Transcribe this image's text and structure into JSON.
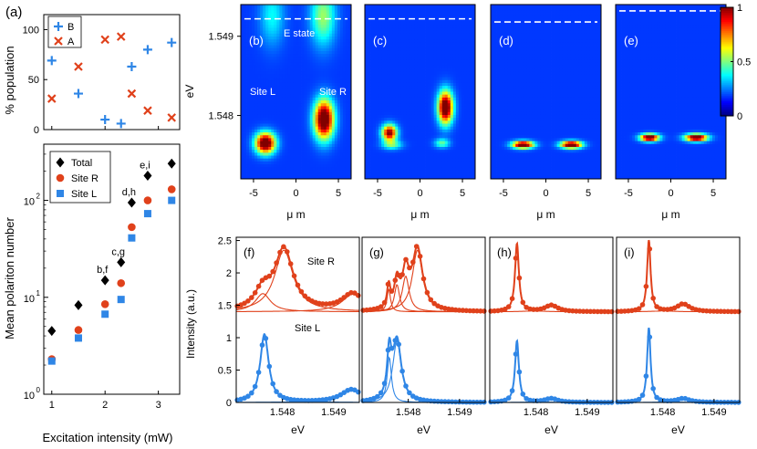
{
  "figure": {
    "panel_a_label": "(a)",
    "heatmap_panel_labels": [
      "(b)",
      "(c)",
      "(d)",
      "(e)"
    ],
    "spectra_panel_labels": [
      "(f)",
      "(g)",
      "(h)",
      "(i)"
    ],
    "e_state_label": "E state",
    "site_l_label": "Site L",
    "site_r_label": "Site R",
    "colorbar_ticks": [
      "1",
      "0.5",
      "0"
    ],
    "colors": {
      "site_r": "#e0411b",
      "site_l": "#2f86e6",
      "total": "#000000",
      "pop_b": "#2f86e6",
      "pop_a": "#e0411b"
    }
  },
  "chart_data": [
    {
      "id": "population",
      "type": "scatter",
      "title": "",
      "xlabel": "",
      "ylabel": "% population",
      "xlim": [
        0.85,
        3.4
      ],
      "ylim": [
        0,
        115
      ],
      "yticks": [
        "0",
        "50",
        "100"
      ],
      "legend": [
        "B",
        "A"
      ],
      "series": [
        {
          "name": "B",
          "marker": "+",
          "x": [
            1.0,
            1.5,
            2.0,
            2.3,
            2.5,
            2.8,
            3.25
          ],
          "y": [
            69,
            36,
            10,
            6,
            63,
            80,
            87
          ]
        },
        {
          "name": "A",
          "marker": "x",
          "x": [
            1.0,
            1.5,
            2.0,
            2.3,
            2.5,
            2.8,
            3.25
          ],
          "y": [
            31,
            63,
            90,
            93,
            36,
            19,
            12
          ]
        }
      ]
    },
    {
      "id": "polariton_number",
      "type": "scatter",
      "title": "",
      "xlabel": "Excitation intensity (mW)",
      "ylabel": "Mean polariton number",
      "xticks": [
        "1",
        "2",
        "3"
      ],
      "yticks": [
        "10",
        "10",
        "10"
      ],
      "ytick_exponents": [
        "0",
        "1",
        "2"
      ],
      "xlim": [
        0.85,
        3.4
      ],
      "ylim": [
        1,
        380
      ],
      "legend": [
        "Total",
        "Site R",
        "Site L"
      ],
      "annotations": [
        "b,f",
        "c,g",
        "d,h",
        "e,i"
      ],
      "series": [
        {
          "name": "Total",
          "marker": "diamond",
          "x": [
            1.0,
            1.5,
            2.0,
            2.3,
            2.5,
            2.8,
            3.25
          ],
          "y": [
            4.5,
            8.3,
            15,
            23,
            95,
            180,
            240
          ]
        },
        {
          "name": "Site R",
          "marker": "circle",
          "x": [
            1.0,
            1.5,
            2.0,
            2.3,
            2.5,
            2.8,
            3.25
          ],
          "y": [
            2.3,
            4.6,
            8.5,
            14,
            53,
            100,
            130
          ]
        },
        {
          "name": "Site L",
          "marker": "square",
          "x": [
            1.0,
            1.5,
            2.0,
            2.3,
            2.5,
            2.8,
            3.25
          ],
          "y": [
            2.2,
            3.8,
            6.7,
            9.5,
            41,
            73,
            100
          ]
        }
      ]
    },
    {
      "id": "heatmaps",
      "type": "heatmap",
      "xlabel": "μ m",
      "ylabel": "eV",
      "xticks": [
        "-5",
        "0",
        "5"
      ],
      "yticks": [
        "1.548",
        "1.549"
      ],
      "xlim": [
        -6.5,
        6.5
      ],
      "ylim": [
        1.5472,
        1.5494
      ],
      "zlim": [
        0,
        1
      ],
      "colorbar": "jet",
      "maps": [
        {
          "panel": "(b)",
          "e_state_ev": 1.54922,
          "peaks": [
            {
              "x": -3.6,
              "ev": 1.54765,
              "amp": 1.0,
              "sx": 0.8,
              "sev": 9e-05
            },
            {
              "x": 3.3,
              "ev": 1.54795,
              "amp": 1.0,
              "sx": 0.8,
              "sev": 0.00017
            },
            {
              "x": 3.2,
              "ev": 1.54925,
              "amp": 0.35,
              "sx": 1.0,
              "sev": 0.00025
            },
            {
              "x": -2.8,
              "ev": 1.54925,
              "amp": 0.2,
              "sx": 1.0,
              "sev": 0.00025
            }
          ]
        },
        {
          "panel": "(c)",
          "e_state_ev": 1.54922,
          "peaks": [
            {
              "x": -3.6,
              "ev": 1.54778,
              "amp": 0.85,
              "sx": 0.6,
              "sev": 7e-05
            },
            {
              "x": 3.0,
              "ev": 1.5481,
              "amp": 1.0,
              "sx": 0.6,
              "sev": 0.00014
            },
            {
              "x": 2.6,
              "ev": 1.54765,
              "amp": 0.3,
              "sx": 0.6,
              "sev": 4e-05
            },
            {
              "x": -3.3,
              "ev": 1.54763,
              "amp": 0.3,
              "sx": 0.8,
              "sev": 4e-05
            }
          ]
        },
        {
          "panel": "(d)",
          "e_state_ev": 1.54918,
          "peaks": [
            {
              "x": -2.7,
              "ev": 1.54763,
              "amp": 1.0,
              "sx": 0.85,
              "sev": 3.2e-05
            },
            {
              "x": 3.0,
              "ev": 1.54763,
              "amp": 1.0,
              "sx": 0.85,
              "sev": 3.2e-05
            }
          ]
        },
        {
          "panel": "(e)",
          "e_state_ev": 1.54932,
          "peaks": [
            {
              "x": -2.5,
              "ev": 1.54772,
              "amp": 1.0,
              "sx": 0.75,
              "sev": 3.2e-05
            },
            {
              "x": 3.0,
              "ev": 1.54772,
              "amp": 1.0,
              "sx": 0.9,
              "sev": 3.2e-05
            }
          ]
        }
      ]
    },
    {
      "id": "spectra",
      "type": "line",
      "xlabel": "eV",
      "ylabel": "Intensity (a.u.)",
      "xticks": [
        "1.548",
        "1.549"
      ],
      "yticks": [
        "0",
        "0.5",
        "1",
        "1.5",
        "2",
        "2.5"
      ],
      "xlim": [
        1.5471,
        1.5495
      ],
      "ylim": [
        0,
        2.55
      ],
      "site_r_offset": 1.4,
      "legend": [
        "Site R",
        "Site L"
      ],
      "panels": [
        {
          "panel": "(f)",
          "site_r_peaks": [
            {
              "ev": 1.54762,
              "amp": 0.28,
              "w": 0.00018
            },
            {
              "ev": 1.54803,
              "amp": 0.95,
              "w": 0.00022
            },
            {
              "ev": 1.54937,
              "amp": 0.27,
              "w": 0.00025
            }
          ],
          "site_l_peaks": [
            {
              "ev": 1.54765,
              "amp": 1.05,
              "w": 0.0001
            },
            {
              "ev": 1.54935,
              "amp": 0.2,
              "w": 0.00025
            }
          ]
        },
        {
          "panel": "(g)",
          "site_r_peaks": [
            {
              "ev": 1.54762,
              "amp": 0.35,
              "w": 4e-05
            },
            {
              "ev": 1.54778,
              "amp": 0.42,
              "w": 6e-05
            },
            {
              "ev": 1.54795,
              "amp": 0.55,
              "w": 8e-05
            },
            {
              "ev": 1.54818,
              "amp": 0.95,
              "w": 0.00012
            }
          ],
          "site_l_peaks": [
            {
              "ev": 1.54763,
              "amp": 0.7,
              "w": 5e-05
            },
            {
              "ev": 1.54778,
              "amp": 0.95,
              "w": 0.0001
            }
          ]
        },
        {
          "panel": "(h)",
          "site_r_peaks": [
            {
              "ev": 1.54763,
              "amp": 1.05,
              "w": 4.5e-05
            },
            {
              "ev": 1.5483,
              "amp": 0.1,
              "w": 0.00015
            }
          ],
          "site_l_peaks": [
            {
              "ev": 1.54763,
              "amp": 0.95,
              "w": 4.5e-05
            },
            {
              "ev": 1.5483,
              "amp": 0.06,
              "w": 0.00015
            }
          ]
        },
        {
          "panel": "(i)",
          "site_r_peaks": [
            {
              "ev": 1.54773,
              "amp": 1.1,
              "w": 4e-05
            },
            {
              "ev": 1.5484,
              "amp": 0.12,
              "w": 0.00015
            }
          ],
          "site_l_peaks": [
            {
              "ev": 1.54773,
              "amp": 1.15,
              "w": 4e-05
            },
            {
              "ev": 1.5484,
              "amp": 0.06,
              "w": 0.00015
            }
          ]
        }
      ]
    }
  ]
}
